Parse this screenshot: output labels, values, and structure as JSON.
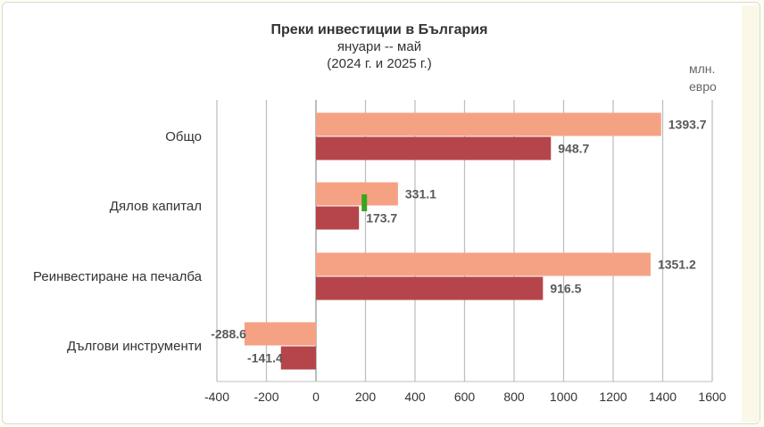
{
  "chart_data": {
    "type": "bar",
    "orientation": "horizontal",
    "title": "Преки инвестиции в България",
    "subtitle": "януари -- май",
    "period": "(2024 г. и 2025 г.)",
    "unit": "млн. евро",
    "categories": [
      "Общо",
      "Дялов капитал",
      "Реинвестиране на печалба",
      "Дългови инструменти"
    ],
    "series": [
      {
        "values": [
          1393.7,
          331.1,
          1351.2,
          -288.6
        ],
        "color": "#f5a284"
      },
      {
        "values": [
          948.7,
          173.7,
          916.5,
          -141.4
        ],
        "color": "#b5454a"
      }
    ],
    "xlim": [
      -400,
      1600
    ],
    "xticks": [
      -400,
      -200,
      0,
      200,
      400,
      600,
      800,
      1000,
      1200,
      1400,
      1600
    ],
    "grid": true,
    "marker_color": "#3aa521"
  }
}
